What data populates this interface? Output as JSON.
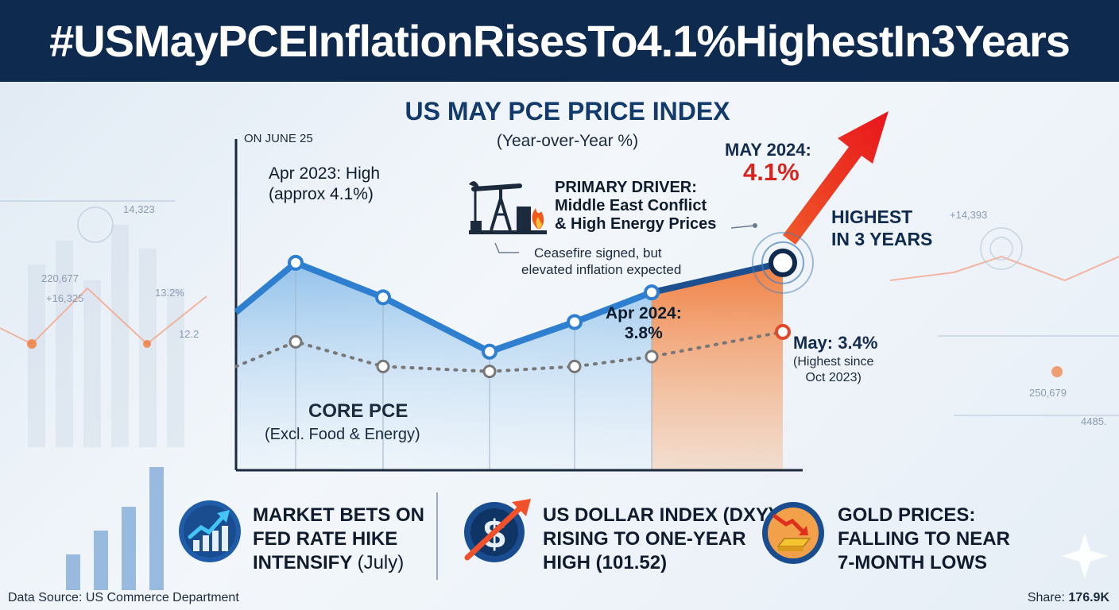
{
  "banner": {
    "title": "#USMayPCEInflationRisesTo4.1%HighestIn3Years"
  },
  "chart": {
    "title": "US MAY PCE PRICE INDEX",
    "subtitle": "(Year-over-Year %)",
    "date_note": "ON JUNE 25"
  },
  "annotations": {
    "apr2023_line1": "Apr 2023: High",
    "apr2023_line2": "(approx 4.1%)",
    "driver_line1": "PRIMARY DRIVER:",
    "driver_line2": "Middle East Conflict",
    "driver_line3": "& High Energy Prices",
    "ceasefire_line1": "Ceasefire signed, but",
    "ceasefire_line2": "elevated inflation expected",
    "may2024_label": "MAY 2024:",
    "may2024_value": "4.1%",
    "highest_line1": "HIGHEST",
    "highest_line2": "IN 3 YEARS",
    "apr2024_line1": "Apr 2024:",
    "apr2024_line2": "3.8%",
    "core_may_label": "May: 3.4%",
    "core_may_note1": "(Highest since",
    "core_may_note2": "Oct 2023)",
    "core_label": "CORE PCE",
    "core_note": "(Excl. Food & Energy)"
  },
  "chart_data": {
    "type": "line",
    "title": "US MAY PCE PRICE INDEX",
    "subtitle": "(Year-over-Year %)",
    "xlabel": "",
    "ylabel": "",
    "x": [
      "Apr 2023",
      "",
      "",
      "",
      "Apr 2024",
      "May 2024"
    ],
    "series": [
      {
        "name": "",
        "color": "#2f7fd0",
        "values": [
          4.1,
          3.75,
          3.2,
          3.5,
          3.8,
          4.1
        ]
      },
      {
        "name": "CORE PCE",
        "color": "#777777",
        "values": [
          3.3,
          3.05,
          3.0,
          3.05,
          3.15,
          3.4
        ]
      }
    ],
    "grid": false
  },
  "cards": [
    {
      "icon": "trend-up-icon",
      "line1": "MARKET BETS ON",
      "line2": "FED RATE HIKE",
      "line3_bold": "INTENSIFY ",
      "line3_light": "(July)"
    },
    {
      "icon": "dollar-rising-icon",
      "line1": "US DOLLAR INDEX (DXY):",
      "line2": "RISING TO ONE-YEAR",
      "line3_bold": "HIGH (101.52)",
      "line3_light": ""
    },
    {
      "icon": "gold-falling-icon",
      "line1": "GOLD PRICES:",
      "line2": "FALLING TO NEAR",
      "line3_bold": "7-MONTH LOWS",
      "line3_light": ""
    }
  ],
  "background_numbers": [
    "14,323",
    "220,677",
    "+16,325",
    "13.2%",
    "12.2",
    "+14,393",
    "250,679",
    "4485."
  ],
  "footer": {
    "source": "Data Source: US Commerce Department",
    "share_label": "Share: ",
    "share_value": "176.9K"
  },
  "colors": {
    "banner": "#0f2a4f",
    "headline_line": "#1e5aa8",
    "highlight_red": "#d7251c",
    "accent_orange": "#f07a3a"
  }
}
